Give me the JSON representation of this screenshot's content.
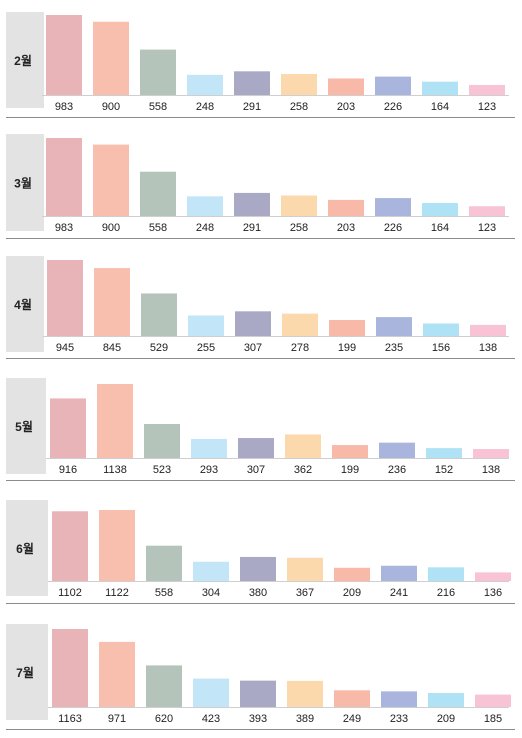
{
  "colors": [
    "#e8b4b8",
    "#f9bfae",
    "#b5c4bb",
    "#c2e6f8",
    "#a9a9c6",
    "#fcd9ad",
    "#f9b9a8",
    "#a9b5dc",
    "#b0e2f6",
    "#f8c3d5"
  ],
  "panel_color": "#e3e3e3",
  "axis_color": "#8c8c8c",
  "chart_data": [
    {
      "type": "bar",
      "title": "2월",
      "values": [
        983,
        900,
        558,
        248,
        291,
        258,
        203,
        226,
        164,
        123
      ]
    },
    {
      "type": "bar",
      "title": "3월",
      "values": [
        983,
        900,
        558,
        248,
        291,
        258,
        203,
        226,
        164,
        123
      ]
    },
    {
      "type": "bar",
      "title": "4월",
      "values": [
        945,
        845,
        529,
        255,
        307,
        278,
        199,
        235,
        156,
        138
      ]
    },
    {
      "type": "bar",
      "title": "5월",
      "values": [
        916,
        1138,
        523,
        293,
        307,
        362,
        199,
        236,
        152,
        138
      ]
    },
    {
      "type": "bar",
      "title": "6월",
      "values": [
        1102,
        1122,
        558,
        304,
        380,
        367,
        209,
        241,
        216,
        136
      ]
    },
    {
      "type": "bar",
      "title": "7월",
      "values": [
        1163,
        971,
        620,
        423,
        393,
        389,
        249,
        233,
        209,
        185
      ]
    }
  ]
}
